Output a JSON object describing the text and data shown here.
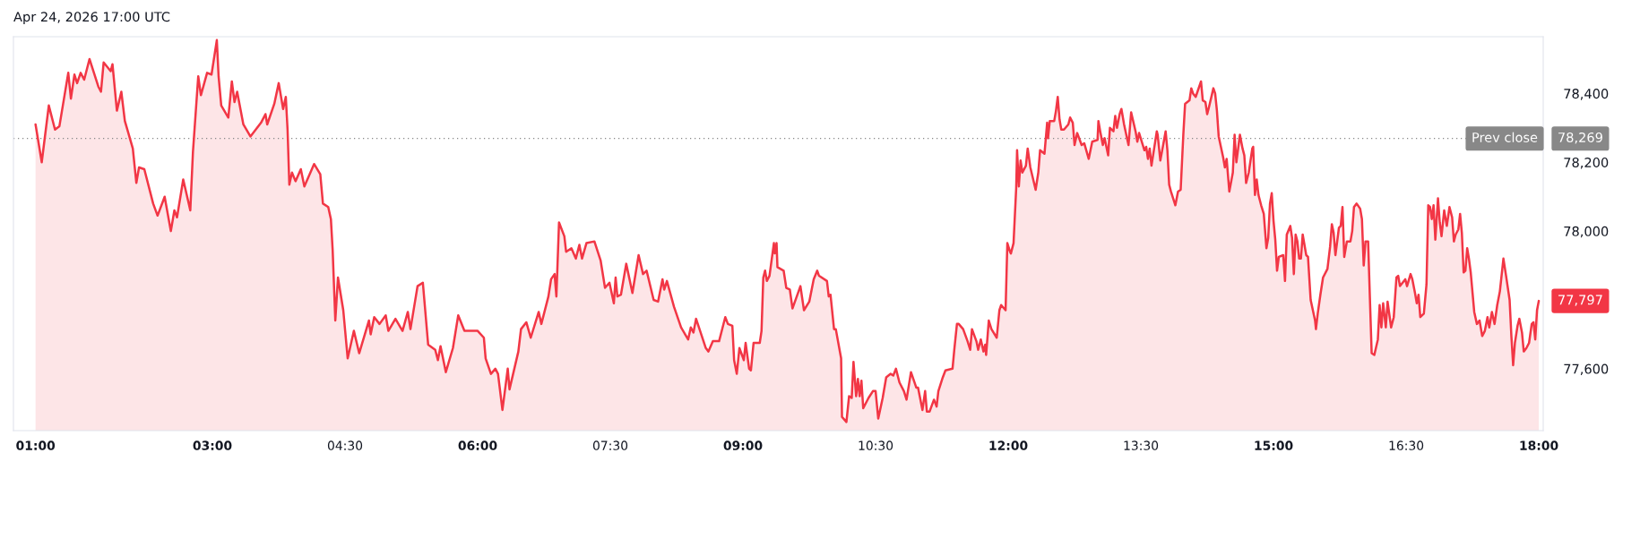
{
  "chart_data": {
    "type": "area",
    "title": "Apr 24, 2026 17:00 UTC",
    "color": "#f23645",
    "x": [
      1.0,
      1.07,
      1.15,
      1.22,
      1.27,
      1.37,
      1.4,
      1.44,
      1.47,
      1.51,
      1.55,
      1.61,
      1.71,
      1.74,
      1.77,
      1.85,
      1.87,
      1.92,
      1.97,
      2.01,
      2.1,
      2.14,
      2.17,
      2.23,
      2.33,
      2.38,
      2.46,
      2.53,
      2.57,
      2.6,
      2.67,
      2.75,
      2.78,
      2.84,
      2.87,
      2.94,
      2.99,
      3.05,
      3.07,
      3.1,
      3.18,
      3.22,
      3.25,
      3.28,
      3.35,
      3.43,
      3.55,
      3.6,
      3.62,
      3.7,
      3.75,
      3.8,
      3.83,
      3.85,
      3.87,
      3.9,
      3.94,
      4.0,
      4.04,
      4.15,
      4.22,
      4.25,
      4.31,
      4.34,
      4.36,
      4.39,
      4.42,
      4.48,
      4.53,
      4.6,
      4.66,
      4.77,
      4.79,
      4.83,
      4.89,
      4.96,
      4.99,
      5.07,
      5.15,
      5.21,
      5.24,
      5.32,
      5.38,
      5.44,
      5.52,
      5.55,
      5.58,
      5.64,
      5.72,
      5.78,
      5.85,
      6.0,
      6.07,
      6.09,
      6.15,
      6.2,
      6.23,
      6.28,
      6.34,
      6.36,
      6.46,
      6.49,
      6.55,
      6.6,
      6.69,
      6.72,
      6.8,
      6.83,
      6.87,
      6.89,
      6.92,
      6.98,
      7.0,
      7.06,
      7.11,
      7.15,
      7.18,
      7.23,
      7.32,
      7.39,
      7.44,
      7.49,
      7.54,
      7.56,
      7.58,
      7.62,
      7.68,
      7.75,
      7.82,
      7.87,
      7.91,
      7.99,
      8.04,
      8.09,
      8.11,
      8.14,
      8.22,
      8.3,
      8.38,
      8.41,
      8.44,
      8.47,
      8.58,
      8.61,
      8.66,
      8.73,
      8.8,
      8.83,
      8.88,
      8.9,
      8.93,
      8.96,
      9.01,
      9.03,
      9.07,
      9.09,
      9.12,
      9.19,
      9.21,
      9.23,
      9.25,
      9.27,
      9.3,
      9.35,
      9.36,
      9.38,
      9.39,
      9.46,
      9.49,
      9.53,
      9.56,
      9.65,
      9.69,
      9.75,
      9.8,
      9.84,
      9.86,
      9.95,
      9.97,
      9.99,
      10.03,
      10.05,
      10.11,
      10.12,
      10.17,
      10.2,
      10.23,
      10.25,
      10.28,
      10.3,
      10.32,
      10.34,
      10.36,
      10.42,
      10.47,
      10.5,
      10.53,
      10.58,
      10.62,
      10.67,
      10.7,
      10.73,
      10.77,
      10.82,
      10.85,
      10.9,
      10.96,
      10.98,
      11.03,
      11.06,
      11.08,
      11.11,
      11.16,
      11.19,
      11.21,
      11.26,
      11.29,
      11.37,
      11.39,
      11.42,
      11.44,
      11.49,
      11.54,
      11.57,
      11.59,
      11.64,
      11.66,
      11.69,
      11.72,
      11.74,
      11.75,
      11.78,
      11.81,
      11.87,
      11.9,
      11.92,
      11.97,
      11.99,
      12.02,
      12.03,
      12.06,
      12.09,
      12.1,
      12.12,
      12.14,
      12.16,
      12.2,
      12.22,
      12.25,
      12.31,
      12.34,
      12.36,
      12.41,
      12.44,
      12.45,
      12.47,
      12.52,
      12.54,
      12.56,
      12.58,
      12.6,
      12.63,
      12.68,
      12.7,
      12.73,
      12.75,
      12.78,
      12.83,
      12.86,
      12.91,
      12.95,
      13.01,
      13.02,
      13.04,
      13.07,
      13.09,
      13.13,
      13.15,
      13.19,
      13.21,
      13.23,
      13.26,
      13.28,
      13.31,
      13.36,
      13.39,
      13.44,
      13.46,
      13.48,
      13.54,
      13.56,
      13.58,
      13.6,
      13.62,
      13.68,
      13.69,
      13.72,
      13.78,
      13.8,
      13.82,
      13.84,
      13.89,
      13.92,
      13.95,
      13.98,
      14.0,
      14.05,
      14.07,
      14.09,
      14.12,
      14.14,
      14.18,
      14.2,
      14.23,
      14.25,
      14.27,
      14.32,
      14.34,
      14.36,
      14.38,
      14.43,
      14.45,
      14.47,
      14.5,
      14.54,
      14.56,
      14.58,
      14.62,
      14.65,
      14.67,
      14.69,
      14.72,
      14.76,
      14.77,
      14.79,
      14.81,
      14.83,
      14.86,
      14.89,
      14.92,
      14.94,
      14.96,
      14.98,
      15.0,
      15.02,
      15.04,
      15.06,
      15.11,
      15.13,
      15.15,
      15.19,
      15.21,
      15.23,
      15.25,
      15.27,
      15.29,
      15.31,
      15.33,
      15.37,
      15.39,
      15.42,
      15.47,
      15.48,
      15.5,
      15.53,
      15.56,
      15.61,
      15.64,
      15.66,
      15.68,
      15.7,
      15.74,
      15.76,
      15.78,
      15.8,
      15.83,
      15.87,
      15.89,
      15.91,
      15.94,
      15.98,
      16.0,
      16.02,
      16.04,
      16.07,
      16.09,
      16.11,
      16.14,
      16.18,
      16.2,
      16.22,
      16.24,
      16.27,
      16.29,
      16.33,
      16.36,
      16.39,
      16.41,
      16.43,
      16.49,
      16.51,
      16.55,
      16.57,
      16.6,
      16.62,
      16.64,
      16.66,
      16.7,
      16.73,
      16.75,
      16.77,
      16.79,
      16.81,
      16.83,
      16.86,
      16.88,
      16.9,
      16.93,
      16.96,
      16.99,
      17.02,
      17.04,
      17.06,
      17.09,
      17.11,
      17.13,
      17.15,
      17.17,
      17.19,
      17.21,
      17.23,
      17.27,
      17.3,
      17.33,
      17.36,
      17.39,
      17.42,
      17.44,
      17.47,
      17.5,
      17.53,
      17.56,
      17.6,
      17.63,
      17.67,
      17.69,
      17.71,
      17.73,
      17.76,
      17.78,
      17.81,
      17.83,
      17.86,
      17.89,
      17.92,
      17.94,
      17.96,
      17.98,
      18.0
    ],
    "values": [
      78310,
      78200,
      78365,
      78295,
      78305,
      78460,
      78385,
      78455,
      78430,
      78460,
      78440,
      78500,
      78420,
      78405,
      78490,
      78465,
      78485,
      78350,
      78405,
      78320,
      78240,
      78140,
      78185,
      78180,
      78080,
      78045,
      78100,
      78000,
      78060,
      78040,
      78150,
      78060,
      78230,
      78450,
      78395,
      78460,
      78455,
      78555,
      78450,
      78365,
      78330,
      78435,
      78375,
      78405,
      78310,
      78275,
      78315,
      78340,
      78310,
      78370,
      78430,
      78355,
      78390,
      78295,
      78135,
      78170,
      78145,
      78180,
      78130,
      78195,
      78165,
      78080,
      78070,
      78035,
      77945,
      77740,
      77865,
      77770,
      77630,
      77710,
      77645,
      77740,
      77700,
      77750,
      77730,
      77755,
      77710,
      77745,
      77710,
      77765,
      77715,
      77840,
      77850,
      77670,
      77655,
      77625,
      77665,
      77590,
      77660,
      77755,
      77710,
      77710,
      77690,
      77630,
      77585,
      77600,
      77585,
      77480,
      77600,
      77540,
      77650,
      77715,
      77735,
      77690,
      77765,
      77730,
      77810,
      77860,
      77875,
      77810,
      78025,
      77985,
      77940,
      77950,
      77920,
      77960,
      77920,
      77965,
      77970,
      77915,
      77835,
      77850,
      77790,
      77865,
      77810,
      77815,
      77905,
      77820,
      77930,
      77875,
      77885,
      77800,
      77795,
      77860,
      77830,
      77855,
      77780,
      77720,
      77685,
      77720,
      77705,
      77745,
      77660,
      77650,
      77680,
      77680,
      77750,
      77730,
      77725,
      77625,
      77585,
      77660,
      77625,
      77675,
      77600,
      77595,
      77675,
      77675,
      77710,
      77865,
      77885,
      77855,
      77870,
      77965,
      77935,
      77965,
      77895,
      77885,
      77835,
      77830,
      77775,
      77840,
      77770,
      77795,
      77860,
      77885,
      77870,
      77855,
      77810,
      77815,
      77715,
      77715,
      77630,
      77460,
      77445,
      77520,
      77515,
      77620,
      77520,
      77570,
      77520,
      77565,
      77485,
      77515,
      77535,
      77535,
      77455,
      77515,
      77575,
      77585,
      77580,
      77600,
      77560,
      77535,
      77510,
      77590,
      77545,
      77545,
      77480,
      77535,
      77475,
      77475,
      77510,
      77490,
      77535,
      77575,
      77595,
      77600,
      77655,
      77730,
      77730,
      77715,
      77680,
      77655,
      77715,
      77680,
      77655,
      77685,
      77650,
      77670,
      77640,
      77740,
      77715,
      77690,
      77770,
      77785,
      77770,
      77965,
      77940,
      77935,
      77965,
      78125,
      78235,
      78130,
      78205,
      78170,
      78190,
      78240,
      78185,
      78120,
      78170,
      78235,
      78225,
      78315,
      78270,
      78320,
      78320,
      78350,
      78390,
      78325,
      78295,
      78295,
      78310,
      78330,
      78315,
      78250,
      78285,
      78250,
      78255,
      78210,
      78260,
      78265,
      78320,
      78290,
      78250,
      78270,
      78220,
      78300,
      78290,
      78335,
      78300,
      78340,
      78355,
      78310,
      78250,
      78345,
      78290,
      78260,
      78285,
      78235,
      78245,
      78210,
      78240,
      78190,
      78290,
      78280,
      78205,
      78290,
      78235,
      78135,
      78115,
      78075,
      78115,
      78120,
      78280,
      78370,
      78380,
      78415,
      78400,
      78390,
      78405,
      78435,
      78380,
      78375,
      78340,
      78360,
      78415,
      78400,
      78350,
      78275,
      78215,
      78185,
      78210,
      78115,
      78170,
      78280,
      78200,
      78280,
      78240,
      78220,
      78140,
      78170,
      78240,
      78245,
      78105,
      78150,
      78105,
      78075,
      78050,
      77950,
      77980,
      78080,
      78110,
      78030,
      77975,
      77885,
      77925,
      77930,
      77855,
      77990,
      78015,
      77980,
      77875,
      77990,
      77970,
      77920,
      77920,
      77990,
      77930,
      77925,
      77800,
      77740,
      77715,
      77760,
      77815,
      77865,
      77890,
      77955,
      78020,
      77995,
      77930,
      78010,
      78015,
      78070,
      77925,
      77970,
      77970,
      78000,
      78070,
      78080,
      78065,
      78035,
      77900,
      77970,
      77970,
      77805,
      77645,
      77640,
      77685,
      77785,
      77720,
      77790,
      77720,
      77795,
      77720,
      77750,
      77865,
      77870,
      77840,
      77860,
      77840,
      77875,
      77860,
      77820,
      77790,
      77815,
      77750,
      77760,
      77845,
      78075,
      78070,
      78035,
      78075,
      77975,
      78095,
      78025,
      77985,
      78060,
      78015,
      78070,
      78040,
      77970,
      77990,
      78005,
      78050,
      77995,
      77880,
      77885,
      77950,
      77920,
      77880,
      77765,
      77730,
      77740,
      77695,
      77710,
      77750,
      77720,
      77765,
      77730,
      77785,
      77825,
      77920,
      77870,
      77800,
      77695,
      77610,
      77675,
      77725,
      77745,
      77705,
      77650,
      77660,
      77675,
      77730,
      77735,
      77685,
      77770,
      77797
    ],
    "xlim": [
      0.75,
      18.05
    ],
    "ylim": [
      77420,
      78565
    ],
    "xticks": [
      {
        "value": 1,
        "label": "01:00"
      },
      {
        "value": 3,
        "label": "03:00"
      },
      {
        "value": 4.5,
        "label": "04:30"
      },
      {
        "value": 6,
        "label": "06:00"
      },
      {
        "value": 7.5,
        "label": "07:30"
      },
      {
        "value": 9,
        "label": "09:00"
      },
      {
        "value": 10.5,
        "label": "10:30"
      },
      {
        "value": 12,
        "label": "12:00"
      },
      {
        "value": 13.5,
        "label": "13:30"
      },
      {
        "value": 15,
        "label": "15:00"
      },
      {
        "value": 16.5,
        "label": "16:30"
      },
      {
        "value": 18,
        "label": "18:00"
      }
    ],
    "yticks": [
      {
        "value": 77600,
        "label": "77,600"
      },
      {
        "value": 78000,
        "label": "78,000"
      },
      {
        "value": 78200,
        "label": "78,200"
      },
      {
        "value": 78400,
        "label": "78,400"
      }
    ],
    "ref_lines": [
      {
        "axis": "y",
        "value": 78269,
        "label": "Prev close",
        "color": "#888888",
        "line_style": "dotted"
      }
    ],
    "annotations": [
      {
        "text": "78,269",
        "x": 18,
        "y": 78269
      },
      {
        "text": "77,797",
        "x": 18,
        "y": 77797
      }
    ],
    "grid": false
  }
}
